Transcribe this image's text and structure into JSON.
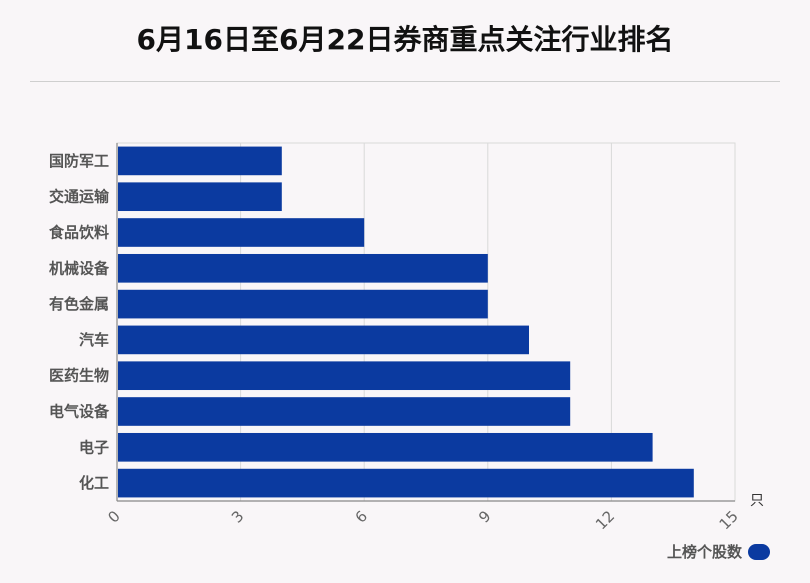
{
  "chart_data": {
    "type": "bar",
    "orientation": "horizontal",
    "title": "6月16日至6月22日券商重点关注行业排名",
    "categories": [
      "国防军工",
      "交通运输",
      "食品饮料",
      "机械设备",
      "有色金属",
      "汽车",
      "医药生物",
      "电气设备",
      "电子",
      "化工"
    ],
    "series": [
      {
        "name": "上榜个股数",
        "values": [
          4,
          4,
          6,
          9,
          9,
          10,
          11,
          11,
          13,
          14
        ]
      }
    ],
    "xlim": [
      0,
      15
    ],
    "xticks": [
      "0",
      "3",
      "6",
      "9",
      "12",
      "15"
    ],
    "xunit": "只",
    "grid": true,
    "legend_position": "bottom-right",
    "colors": {
      "bar": "#0b3aa0",
      "grid": "#d9d9d9",
      "axis": "#888888"
    }
  }
}
